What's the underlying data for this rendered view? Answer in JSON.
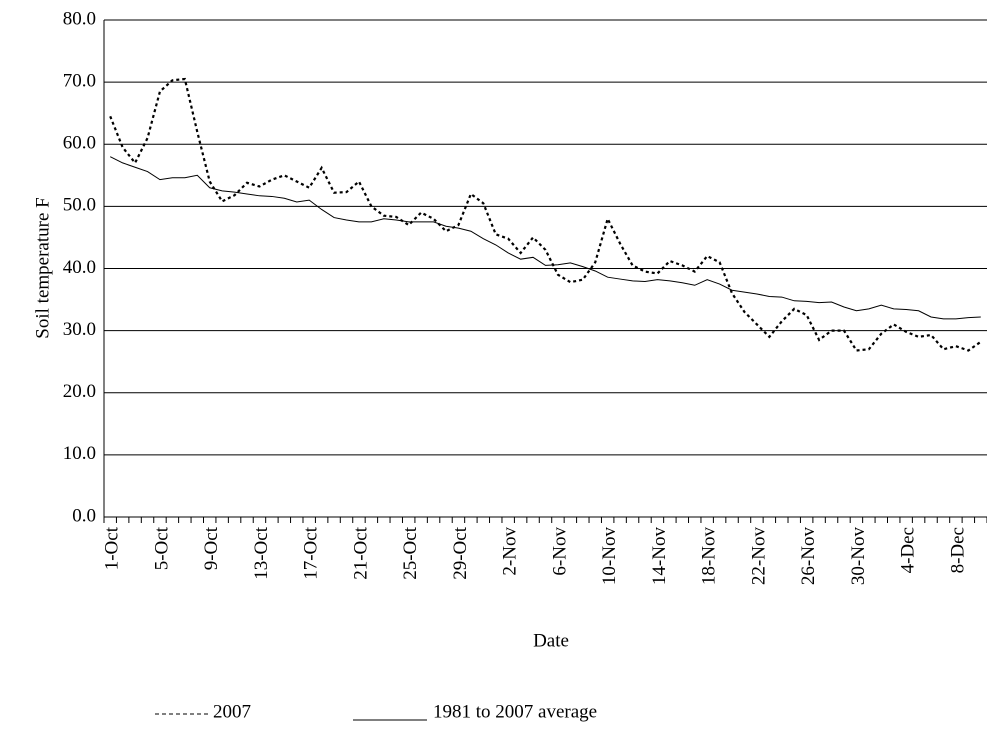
{
  "chart_data": {
    "type": "line",
    "y_label": "Soil temperature F",
    "x_label": "Date",
    "categories": [
      "1-Oct",
      null,
      null,
      null,
      "5-Oct",
      null,
      null,
      null,
      "9-Oct",
      null,
      null,
      null,
      "13-Oct",
      null,
      null,
      null,
      "17-Oct",
      null,
      null,
      null,
      "21-Oct",
      null,
      null,
      null,
      "25-Oct",
      null,
      null,
      null,
      "29-Oct",
      null,
      null,
      null,
      "2-Nov",
      null,
      null,
      null,
      "6-Nov",
      null,
      null,
      null,
      "10-Nov",
      null,
      null,
      null,
      "14-Nov",
      null,
      null,
      null,
      "18-Nov",
      null,
      null,
      null,
      "22-Nov",
      null,
      null,
      null,
      "26-Nov",
      null,
      null,
      null,
      "30-Nov",
      null,
      null,
      null,
      "4-Dec",
      null,
      null,
      null,
      "8-Dec",
      null,
      null
    ],
    "series": [
      {
        "name": "2007",
        "color": "#000000",
        "dashed": true,
        "values": [
          64.5,
          59.5,
          57,
          61,
          68.5,
          70.3,
          70.5,
          62,
          54,
          50.8,
          51.8,
          53.8,
          53.2,
          54.3,
          55,
          54,
          53,
          56.2,
          52.2,
          52.3,
          54,
          50,
          48.5,
          48.3,
          47,
          49,
          48,
          46,
          47,
          52,
          50.5,
          45.5,
          44.8,
          42.5,
          45,
          43,
          39,
          37.8,
          38.2,
          41,
          48,
          44,
          40.5,
          39.5,
          39.2,
          41.2,
          40.5,
          39.5,
          42,
          41,
          36,
          33,
          31,
          29,
          31.5,
          33.5,
          32.5,
          28.5,
          30,
          30,
          26.8,
          27,
          29.5,
          31,
          29.8,
          29,
          29.3,
          27,
          27.5,
          26.8,
          28.2
        ]
      },
      {
        "name": "1981 to 2007 average",
        "color": "#000000",
        "dashed": false,
        "values": [
          58,
          57,
          56.3,
          55.6,
          54.3,
          54.6,
          54.6,
          55,
          53,
          52.5,
          52.3,
          52,
          51.7,
          51.6,
          51.3,
          50.7,
          51,
          49.5,
          48.2,
          47.8,
          47.5,
          47.5,
          48,
          47.8,
          47.5,
          47.5,
          47.5,
          46.8,
          46.5,
          46,
          44.8,
          43.8,
          42.5,
          41.5,
          41.8,
          40.5,
          40.6,
          40.9,
          40.3,
          39.6,
          38.6,
          38.3,
          38,
          37.9,
          38.2,
          38,
          37.7,
          37.3,
          38.2,
          37.5,
          36.5,
          36.2,
          35.9,
          35.5,
          35.4,
          34.8,
          34.7,
          34.5,
          34.6,
          33.8,
          33.2,
          33.5,
          34.1,
          33.5,
          33.4,
          33.2,
          32.2,
          31.9,
          31.9,
          32.1,
          32.2
        ]
      }
    ],
    "ylim": [
      0,
      80
    ],
    "yticks": [
      {
        "value": 0,
        "label": "0.0"
      },
      {
        "value": 10,
        "label": "10.0"
      },
      {
        "value": 20,
        "label": "20.0"
      },
      {
        "value": 30,
        "label": "30.0"
      },
      {
        "value": 40,
        "label": "40.0"
      },
      {
        "value": 50,
        "label": "50.0"
      },
      {
        "value": 60,
        "label": "60.0"
      },
      {
        "value": 70,
        "label": "70.0"
      },
      {
        "value": 80,
        "label": "80.0"
      }
    ],
    "grid": true,
    "legend": "bottom"
  }
}
